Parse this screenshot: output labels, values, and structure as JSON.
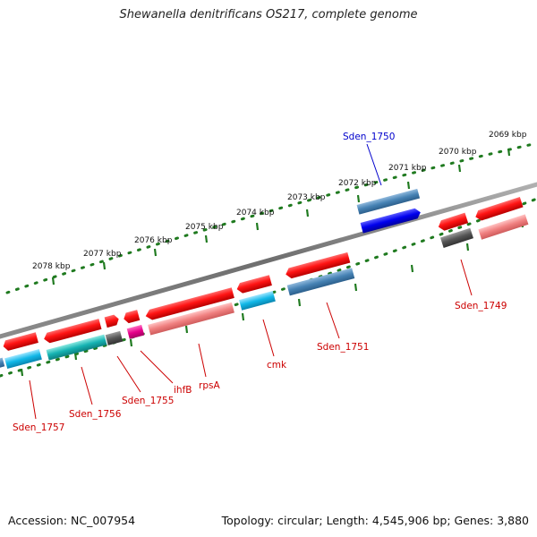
{
  "title": "Shewanella denitrificans OS217, complete genome",
  "footer": {
    "accession": "Accession: NC_007954",
    "summary": "Topology: circular; Length: 4,545,906 bp; Genes: 3,880"
  },
  "colors": {
    "genome_line": "#7a7a7a",
    "tick_dots": "#1f7a1f",
    "label_red": "#cc0000",
    "label_blue": "#0000cc",
    "cds_red": "#ff1a1a",
    "cds_pink": "#f08080",
    "cds_steel": "#4682b4",
    "cds_blue": "#0000ee",
    "cds_cyan": "#11b8e8",
    "cds_teal": "#16b3b3",
    "cds_gray": "#555555",
    "cds_magenta": "#e6008a"
  },
  "scale_labels": [
    "2069 kbp",
    "2070 kbp",
    "2071 kbp",
    "2072 kbp",
    "2073 kbp",
    "2074 kbp",
    "2075 kbp",
    "2076 kbp",
    "2077 kbp",
    "2078 kbp"
  ],
  "gene_labels": {
    "sden_1750": "Sden_1750",
    "sden_1749": "Sden_1749",
    "sden_1751": "Sden_1751",
    "cmk": "cmk",
    "rpsA": "rpsA",
    "ihfB": "ihfB",
    "sden_1755": "Sden_1755",
    "sden_1756": "Sden_1756",
    "sden_1757": "Sden_1757"
  }
}
